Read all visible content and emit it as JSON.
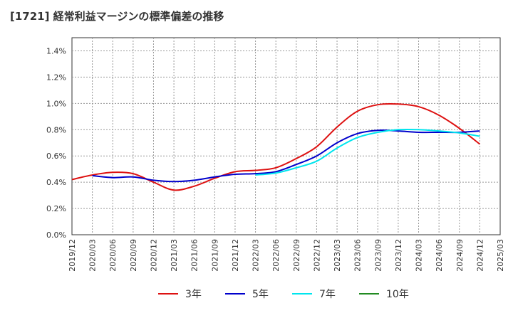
{
  "chart_data": {
    "type": "line",
    "title": "[1721]  経常利益マージンの標準偏差の推移",
    "xlabel": "",
    "ylabel": "",
    "ylim": [
      0.0,
      1.5
    ],
    "yticks": [
      0.0,
      0.2,
      0.4,
      0.6,
      0.8,
      1.0,
      1.2,
      1.4
    ],
    "ytick_labels": [
      "0.0%",
      "0.2%",
      "0.4%",
      "0.6%",
      "0.8%",
      "1.0%",
      "1.2%",
      "1.4%"
    ],
    "x_tick_labels": [
      "2019/12",
      "2020/03",
      "2020/06",
      "2020/09",
      "2020/12",
      "2021/03",
      "2021/06",
      "2021/09",
      "2021/12",
      "2022/03",
      "2022/06",
      "2022/09",
      "2022/12",
      "2023/03",
      "2023/06",
      "2023/09",
      "2023/12",
      "2024/03",
      "2024/06",
      "2024/09",
      "2024/12",
      "2025/03"
    ],
    "grid": true,
    "legend_position": "bottom",
    "series": [
      {
        "name": "3年",
        "color": "#dd1111",
        "x": [
          "2019/12",
          "2020/03",
          "2020/06",
          "2020/09",
          "2020/12",
          "2021/03",
          "2021/06",
          "2021/09",
          "2021/12",
          "2022/03",
          "2022/06",
          "2022/09",
          "2022/12",
          "2023/03",
          "2023/06",
          "2023/09",
          "2023/12",
          "2024/03",
          "2024/06",
          "2024/09",
          "2024/12"
        ],
        "values": [
          0.42,
          0.455,
          0.475,
          0.465,
          0.4,
          0.34,
          0.37,
          0.43,
          0.48,
          0.49,
          0.51,
          0.58,
          0.67,
          0.82,
          0.94,
          0.99,
          0.995,
          0.975,
          0.91,
          0.81,
          0.69
        ]
      },
      {
        "name": "5年",
        "color": "#0000cc",
        "x": [
          "2020/03",
          "2020/06",
          "2020/09",
          "2020/12",
          "2021/03",
          "2021/06",
          "2021/09",
          "2021/12",
          "2022/03",
          "2022/06",
          "2022/09",
          "2022/12",
          "2023/03",
          "2023/06",
          "2023/09",
          "2023/12",
          "2024/03",
          "2024/06",
          "2024/09",
          "2024/12"
        ],
        "values": [
          0.45,
          0.435,
          0.44,
          0.415,
          0.405,
          0.415,
          0.44,
          0.46,
          0.465,
          0.48,
          0.535,
          0.6,
          0.7,
          0.77,
          0.795,
          0.79,
          0.78,
          0.78,
          0.78,
          0.79
        ]
      },
      {
        "name": "7年",
        "color": "#00e5ee",
        "x": [
          "2022/03",
          "2022/06",
          "2022/09",
          "2022/12",
          "2023/03",
          "2023/06",
          "2023/09",
          "2023/12",
          "2024/03",
          "2024/06",
          "2024/09",
          "2024/12"
        ],
        "values": [
          0.455,
          0.47,
          0.51,
          0.56,
          0.66,
          0.74,
          0.78,
          0.8,
          0.8,
          0.79,
          0.775,
          0.75
        ]
      },
      {
        "name": "10年",
        "color": "#228b22",
        "x": [],
        "values": []
      }
    ]
  }
}
